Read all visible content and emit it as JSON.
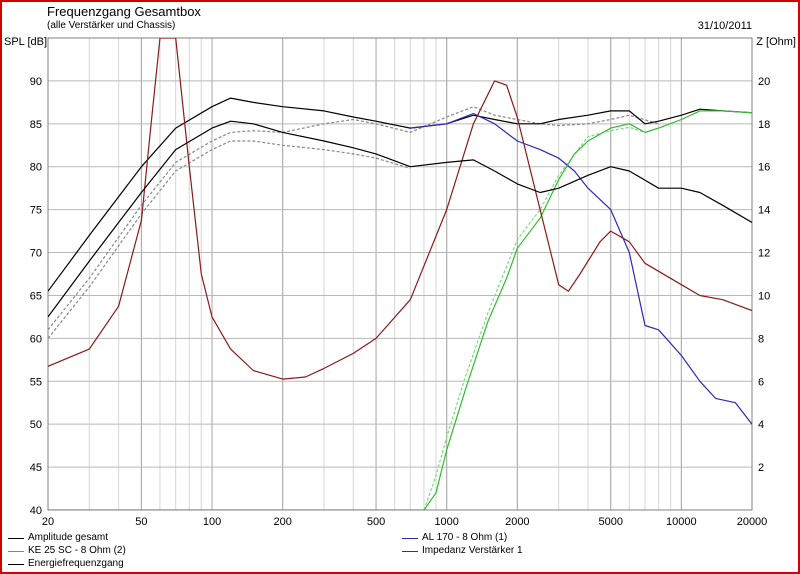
{
  "header": {
    "title": "Frequenzgang Gesamtbox",
    "subtitle": "(alle Verstärker und Chassis)",
    "date": "31/10/2011"
  },
  "chart_data": {
    "type": "line",
    "xscale": "log",
    "xlim": [
      20,
      20000
    ],
    "ylim": [
      40,
      95
    ],
    "y2lim": [
      0,
      22
    ],
    "ylabel": "SPL [dB]",
    "y2label": "Z [Ohm]",
    "x_ticks": [
      20,
      50,
      100,
      200,
      500,
      1000,
      2000,
      5000,
      10000,
      20000
    ],
    "y_ticks": [
      40,
      45,
      50,
      55,
      60,
      65,
      70,
      75,
      80,
      85,
      90
    ],
    "y2_ticks": [
      2,
      4,
      6,
      8,
      10,
      12,
      14,
      16,
      18,
      20
    ],
    "grid": true,
    "series": [
      {
        "name": "Amplitude gesamt",
        "color": "#000000",
        "axis": "left",
        "points": [
          [
            20,
            65.5
          ],
          [
            30,
            72
          ],
          [
            50,
            80
          ],
          [
            70,
            84.5
          ],
          [
            100,
            87
          ],
          [
            120,
            88
          ],
          [
            150,
            87.5
          ],
          [
            200,
            87
          ],
          [
            300,
            86.5
          ],
          [
            400,
            85.8
          ],
          [
            500,
            85.3
          ],
          [
            700,
            84.5
          ],
          [
            1000,
            85
          ],
          [
            1300,
            86
          ],
          [
            1600,
            85.5
          ],
          [
            2000,
            85
          ],
          [
            2500,
            85
          ],
          [
            3000,
            85.5
          ],
          [
            4000,
            86
          ],
          [
            5000,
            86.5
          ],
          [
            6000,
            86.5
          ],
          [
            7000,
            85
          ],
          [
            8000,
            85.3
          ],
          [
            10000,
            86
          ],
          [
            12000,
            86.7
          ],
          [
            15000,
            86.5
          ],
          [
            20000,
            86.3
          ]
        ]
      },
      {
        "name": "AL 170 - 8 Ohm (1)",
        "color": "#2a2ab8",
        "axis": "left",
        "points": [
          [
            700,
            84.5
          ],
          [
            1000,
            85
          ],
          [
            1300,
            86.2
          ],
          [
            1600,
            85
          ],
          [
            2000,
            83
          ],
          [
            2500,
            82
          ],
          [
            3000,
            81
          ],
          [
            3500,
            79.5
          ],
          [
            4000,
            77.5
          ],
          [
            5000,
            75
          ],
          [
            6000,
            70
          ],
          [
            7000,
            61.5
          ],
          [
            8000,
            61
          ],
          [
            10000,
            58
          ],
          [
            12000,
            55
          ],
          [
            14000,
            53
          ],
          [
            17000,
            52.5
          ],
          [
            20000,
            50
          ]
        ]
      },
      {
        "name": "KE 25 SC - 8 Ohm    (2)",
        "color": "#33bb33",
        "axis": "left",
        "points": [
          [
            20,
            40
          ],
          [
            800,
            40
          ],
          [
            900,
            42
          ],
          [
            1000,
            47
          ],
          [
            1200,
            54
          ],
          [
            1500,
            62
          ],
          [
            1800,
            67
          ],
          [
            2000,
            70.5
          ],
          [
            2500,
            74
          ],
          [
            3000,
            78.5
          ],
          [
            3500,
            81.5
          ],
          [
            4000,
            83
          ],
          [
            5000,
            84.5
          ],
          [
            6000,
            85
          ],
          [
            7000,
            84
          ],
          [
            8000,
            84.5
          ],
          [
            10000,
            85.5
          ],
          [
            12000,
            86.5
          ],
          [
            15000,
            86.5
          ],
          [
            20000,
            86.3
          ]
        ]
      },
      {
        "name": "Impedanz Verstärker 1",
        "color": "#8b1a1a",
        "axis": "right",
        "points": [
          [
            20,
            6.7
          ],
          [
            30,
            7.5
          ],
          [
            40,
            9.5
          ],
          [
            50,
            13.5
          ],
          [
            55,
            18
          ],
          [
            60,
            22
          ],
          [
            70,
            22
          ],
          [
            80,
            16
          ],
          [
            90,
            11
          ],
          [
            100,
            9
          ],
          [
            120,
            7.5
          ],
          [
            150,
            6.5
          ],
          [
            200,
            6.1
          ],
          [
            250,
            6.2
          ],
          [
            300,
            6.6
          ],
          [
            400,
            7.3
          ],
          [
            500,
            8
          ],
          [
            700,
            9.8
          ],
          [
            1000,
            14
          ],
          [
            1300,
            18
          ],
          [
            1600,
            20
          ],
          [
            1800,
            19.8
          ],
          [
            2000,
            18.3
          ],
          [
            2500,
            14
          ],
          [
            3000,
            10.5
          ],
          [
            3300,
            10.2
          ],
          [
            3700,
            11
          ],
          [
            4500,
            12.5
          ],
          [
            5000,
            13
          ],
          [
            6000,
            12.5
          ],
          [
            7000,
            11.5
          ],
          [
            10000,
            10.5
          ],
          [
            12000,
            10
          ],
          [
            15000,
            9.8
          ],
          [
            20000,
            9.3
          ]
        ]
      },
      {
        "name": "Energiefrequenzgang",
        "color": "#000000",
        "axis": "left",
        "points": [
          [
            20,
            62.5
          ],
          [
            30,
            69
          ],
          [
            50,
            77
          ],
          [
            70,
            82
          ],
          [
            100,
            84.5
          ],
          [
            120,
            85.3
          ],
          [
            150,
            85
          ],
          [
            200,
            84
          ],
          [
            300,
            83
          ],
          [
            400,
            82.2
          ],
          [
            500,
            81.5
          ],
          [
            700,
            80
          ],
          [
            1000,
            80.5
          ],
          [
            1300,
            80.8
          ],
          [
            1600,
            79.5
          ],
          [
            2000,
            78
          ],
          [
            2500,
            77
          ],
          [
            3000,
            77.5
          ],
          [
            4000,
            79
          ],
          [
            5000,
            80
          ],
          [
            6000,
            79.5
          ],
          [
            8000,
            77.5
          ],
          [
            10000,
            77.5
          ],
          [
            12000,
            77
          ],
          [
            15000,
            75.5
          ],
          [
            20000,
            73.5
          ]
        ]
      },
      {
        "name": "",
        "color": "#888888",
        "axis": "left",
        "dashed": true,
        "points": [
          [
            20,
            61
          ],
          [
            30,
            67
          ],
          [
            50,
            75.5
          ],
          [
            70,
            80.5
          ],
          [
            100,
            83
          ],
          [
            120,
            84
          ],
          [
            150,
            84.2
          ],
          [
            200,
            84
          ],
          [
            300,
            85
          ],
          [
            400,
            85.5
          ],
          [
            500,
            85
          ],
          [
            700,
            84
          ],
          [
            1000,
            85.8
          ],
          [
            1300,
            87
          ],
          [
            1600,
            86
          ],
          [
            2000,
            85.5
          ],
          [
            2500,
            85
          ],
          [
            3000,
            84.8
          ],
          [
            4000,
            85
          ],
          [
            5000,
            85.5
          ],
          [
            6000,
            86
          ],
          [
            8000,
            85
          ]
        ]
      },
      {
        "name": "",
        "color": "#888888",
        "axis": "left",
        "dashed": true,
        "points": [
          [
            20,
            60
          ],
          [
            30,
            66
          ],
          [
            50,
            74.5
          ],
          [
            70,
            79.5
          ],
          [
            100,
            82
          ],
          [
            120,
            83
          ],
          [
            150,
            83
          ],
          [
            200,
            82.5
          ],
          [
            300,
            82
          ],
          [
            400,
            81.5
          ],
          [
            500,
            81
          ],
          [
            700,
            79.8
          ]
        ]
      },
      {
        "name": "",
        "color": "#77dd77",
        "axis": "left",
        "dashed": true,
        "points": [
          [
            800,
            40
          ],
          [
            900,
            44
          ],
          [
            1000,
            48.5
          ],
          [
            1200,
            55.5
          ],
          [
            1500,
            63
          ],
          [
            2000,
            71.5
          ],
          [
            2500,
            75
          ],
          [
            3000,
            79
          ],
          [
            4000,
            83.5
          ],
          [
            5000,
            84.2
          ],
          [
            6000,
            84.6
          ],
          [
            7000,
            84
          ],
          [
            8000,
            84.5
          ]
        ]
      }
    ],
    "legend": [
      {
        "name": "Amplitude gesamt",
        "color": "#000000",
        "position": "left-1"
      },
      {
        "name": "KE 25 SC - 8 Ohm    (2)",
        "color": "#33bb33",
        "position": "left-2"
      },
      {
        "name": "Energiefrequenzgang",
        "color": "#000000",
        "position": "left-3"
      },
      {
        "name": "AL 170 - 8 Ohm (1)",
        "color": "#2a2ab8",
        "position": "right-1"
      },
      {
        "name": "Impedanz Verstärker 1",
        "color": "#8b1a1a",
        "position": "right-2"
      }
    ]
  }
}
